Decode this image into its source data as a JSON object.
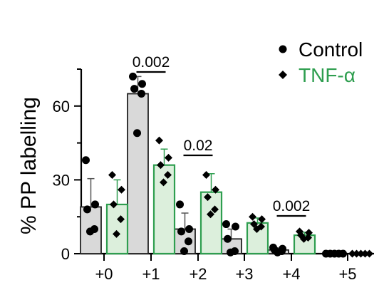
{
  "chart_data": {
    "type": "bar",
    "categories": [
      "+0",
      "+1",
      "+2",
      "+3",
      "+4",
      "+5"
    ],
    "ylabel": "% PP labelling",
    "xlabel": "",
    "ylim": [
      0,
      75
    ],
    "yticks": [
      0,
      30,
      60
    ],
    "legend_position": "top-right",
    "series": [
      {
        "name": "Control",
        "marker": "circle",
        "fill": "#d9d9d9",
        "marker_color": "#000000",
        "values": [
          19,
          65,
          10,
          6,
          1.5,
          0
        ],
        "errors": [
          11.5,
          7,
          6.5,
          4,
          0.8,
          0
        ],
        "points": [
          [
            38,
            20,
            18,
            10,
            9
          ],
          [
            72,
            69,
            67,
            65,
            49
          ],
          [
            20,
            10,
            9,
            5,
            1
          ],
          [
            12,
            11,
            6,
            1,
            0.5
          ],
          [
            2.5,
            2,
            1.5,
            1,
            0.5
          ],
          [
            0,
            0,
            0,
            0,
            0
          ]
        ]
      },
      {
        "name": "TNF-α",
        "marker": "diamond",
        "fill": "#dcefdc",
        "border": "#2e9e4f",
        "marker_color": "#000000",
        "values": [
          20,
          36,
          25,
          12.5,
          7.5,
          0
        ],
        "errors": [
          10,
          6.5,
          7.5,
          2,
          1.2,
          0
        ],
        "points": [
          [
            32,
            26,
            20,
            14,
            8
          ],
          [
            46,
            39,
            36,
            32,
            29
          ],
          [
            32,
            26,
            23,
            18,
            16
          ],
          [
            15,
            14,
            12,
            11,
            10
          ],
          [
            9,
            8.5,
            7.5,
            6.5,
            6
          ],
          [
            0,
            0,
            0,
            0,
            0
          ]
        ]
      }
    ],
    "annotations": [
      {
        "text": "0.002",
        "category_index": 1
      },
      {
        "text": "0.02",
        "category_index": 2
      },
      {
        "text": "0.002",
        "category_index": 4
      }
    ]
  },
  "colors": {
    "axis": "#000000",
    "control_fill": "#d9d9d9",
    "tnf_fill": "#dcefdc",
    "tnf_border": "#2e9e4f",
    "tnf_legend_text": "#2e9e4f"
  }
}
